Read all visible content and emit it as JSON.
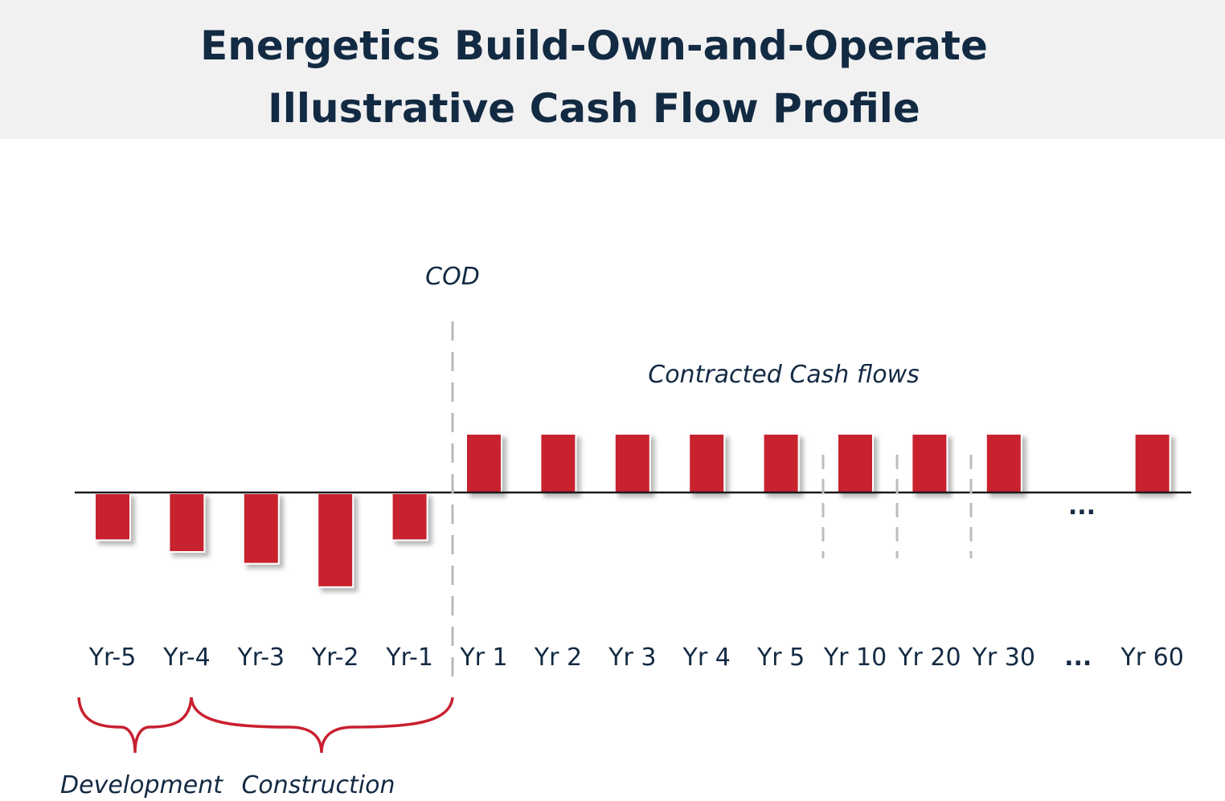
{
  "title_lines": [
    "Energetics Build-Own-and-Operate",
    "Illustrative Cash Flow Profile"
  ],
  "chart_data": {
    "type": "bar",
    "title": "Energetics Build-Own-and-Operate Illustrative Cash Flow Profile",
    "xlabel": "",
    "ylabel": "",
    "categories": [
      "Yr-5",
      "Yr-4",
      "Yr-3",
      "Yr-2",
      "Yr-1",
      "Yr 1",
      "Yr 2",
      "Yr 3",
      "Yr 4",
      "Yr 5",
      "Yr 10",
      "Yr 20",
      "Yr 30",
      "...",
      "Yr 60"
    ],
    "values": [
      -0.8,
      -1.0,
      -1.2,
      -1.6,
      -0.8,
      1.0,
      1.0,
      1.0,
      1.0,
      1.0,
      1.0,
      1.0,
      1.0,
      null,
      1.0
    ],
    "ylim": [
      -1.6,
      1.0
    ],
    "grid": false,
    "bar_color": "#c8202f",
    "ellipsis": "...",
    "annotations": {
      "cod": "COD",
      "contracted": "Contracted Cash flows",
      "development": "Development",
      "construction": "Construction"
    }
  }
}
